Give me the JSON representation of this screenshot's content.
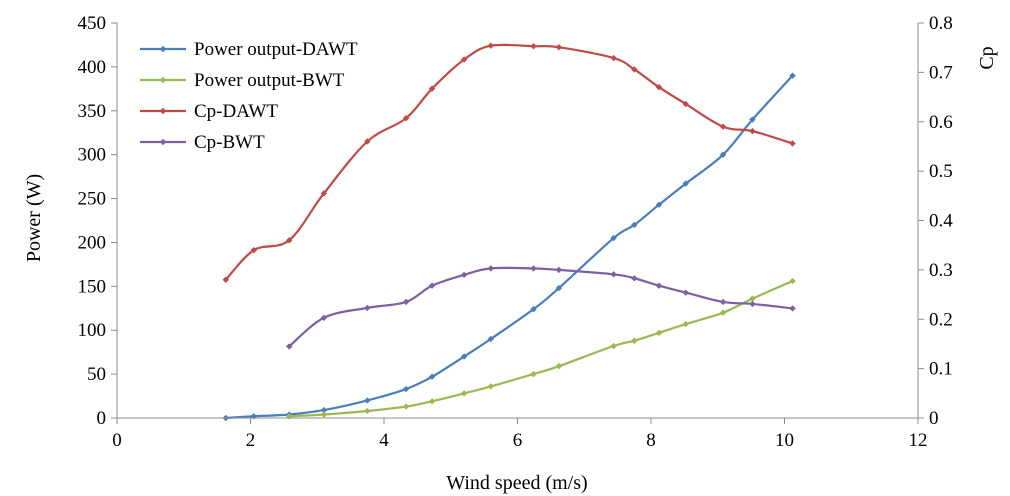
{
  "chart_data": {
    "type": "line",
    "xlabel": "Wind speed (m/s)",
    "ylabel": "Power (W)",
    "y2label": "Cp",
    "xlim": [
      0,
      12
    ],
    "ylim": [
      0,
      450
    ],
    "y2lim": [
      0,
      0.8
    ],
    "xticks": [
      "0",
      "2",
      "4",
      "6",
      "8",
      "10",
      "12"
    ],
    "yticks": [
      "0",
      "50",
      "100",
      "150",
      "200",
      "250",
      "300",
      "350",
      "400",
      "450"
    ],
    "y2ticks": [
      "0",
      "0.1",
      "0.2",
      "0.3",
      "0.4",
      "0.5",
      "0.6",
      "0.7",
      "0.8"
    ],
    "grid": false,
    "legend_position": "top-left",
    "series": [
      {
        "name": "Power output-DAWT",
        "axis": "left",
        "color": "#4a7ebb",
        "x": [
          1.63,
          2.05,
          2.58,
          3.1,
          3.75,
          4.33,
          4.72,
          5.2,
          5.6,
          6.24,
          6.62,
          7.44,
          7.75,
          8.12,
          8.52,
          9.08,
          9.52,
          10.12
        ],
        "y": [
          0,
          2,
          4,
          9,
          20,
          33,
          47,
          70,
          90,
          124,
          148,
          205,
          220,
          243,
          267,
          300,
          340,
          390
        ]
      },
      {
        "name": "Power output-BWT",
        "axis": "left",
        "color": "#98b954",
        "x": [
          2.58,
          3.1,
          3.75,
          4.33,
          4.72,
          5.2,
          5.6,
          6.24,
          6.62,
          7.44,
          7.75,
          8.12,
          8.52,
          9.08,
          9.52,
          10.12
        ],
        "y": [
          2,
          4,
          8,
          13,
          19,
          28,
          36,
          50,
          59,
          82,
          88,
          97,
          107,
          120,
          136,
          156
        ]
      },
      {
        "name": "Cp-DAWT",
        "axis": "right",
        "color": "#be4b48",
        "x": [
          1.63,
          2.05,
          2.58,
          3.1,
          3.75,
          4.33,
          4.72,
          5.2,
          5.6,
          6.24,
          6.62,
          7.44,
          7.75,
          8.12,
          8.52,
          9.08,
          9.52,
          10.12
        ],
        "y": [
          0.28,
          0.34,
          0.36,
          0.455,
          0.56,
          0.607,
          0.667,
          0.726,
          0.754,
          0.753,
          0.751,
          0.729,
          0.706,
          0.67,
          0.636,
          0.59,
          0.581,
          0.556
        ]
      },
      {
        "name": "Cp-BWT",
        "axis": "right",
        "color": "#7d60a0",
        "x": [
          2.58,
          3.1,
          3.75,
          4.33,
          4.72,
          5.2,
          5.6,
          6.24,
          6.62,
          7.44,
          7.75,
          8.12,
          8.52,
          9.08,
          9.52,
          10.12
        ],
        "y": [
          0.145,
          0.203,
          0.223,
          0.235,
          0.268,
          0.29,
          0.303,
          0.303,
          0.3,
          0.291,
          0.283,
          0.268,
          0.254,
          0.235,
          0.231,
          0.222
        ]
      }
    ]
  }
}
